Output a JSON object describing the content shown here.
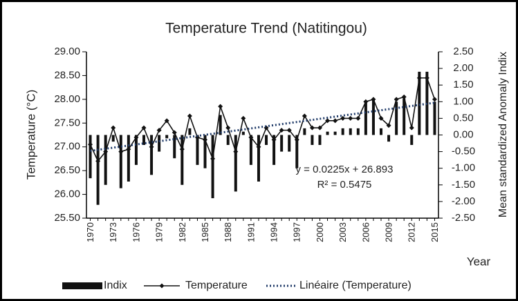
{
  "chart_data": {
    "type": "combo",
    "title": "Temperature Trend (Natitingou)",
    "y_label": "Temperature (°C)",
    "y2_label": "Mean standardized  Anomaly Indix",
    "x_label": "Year",
    "categories": [
      "1970",
      null,
      null,
      "1973",
      null,
      null,
      "1976",
      null,
      null,
      "1979",
      null,
      null,
      "1982",
      null,
      null,
      "1985",
      null,
      null,
      "1988",
      null,
      null,
      "1991",
      null,
      null,
      "1994",
      null,
      null,
      "1997",
      null,
      null,
      "2000",
      null,
      null,
      "2003",
      null,
      null,
      "2006",
      null,
      null,
      "2009",
      null,
      null,
      "2012",
      null,
      null,
      "2015"
    ],
    "series": [
      {
        "name": "Indix",
        "type": "bar",
        "axis": "y2",
        "color": "#111111",
        "values": [
          -1.3,
          -2.1,
          -1.5,
          -0.2,
          -1.6,
          -1.4,
          -0.9,
          -0.3,
          -1.2,
          -0.5,
          -0.1,
          -0.7,
          -1.5,
          0.2,
          -0.9,
          -1.0,
          -1.9,
          0.6,
          -0.3,
          -1.7,
          0.1,
          -0.9,
          -1.4,
          -0.3,
          -0.9,
          -0.5,
          -0.5,
          -1.0,
          0.2,
          -0.3,
          -0.3,
          0.1,
          0.1,
          0.2,
          0.2,
          0.2,
          1.0,
          1.1,
          0.2,
          -0.2,
          1.0,
          1.1,
          -0.3,
          1.9,
          1.9,
          1.0
        ]
      },
      {
        "name": "Temperature",
        "type": "line",
        "axis": "y",
        "color": "#111111",
        "values": [
          27.05,
          26.7,
          26.9,
          27.4,
          26.9,
          26.95,
          27.2,
          27.4,
          27.0,
          27.35,
          27.55,
          27.3,
          26.95,
          27.65,
          27.2,
          27.15,
          26.75,
          27.85,
          27.4,
          26.9,
          27.6,
          27.2,
          27.0,
          27.4,
          27.15,
          27.35,
          27.35,
          27.15,
          27.65,
          27.4,
          27.4,
          27.55,
          27.55,
          27.6,
          27.6,
          27.6,
          27.95,
          28.0,
          27.6,
          27.45,
          28.0,
          28.05,
          27.4,
          28.45,
          28.45,
          28.0
        ]
      },
      {
        "name": "Linéaire (Temperature)",
        "type": "trend",
        "axis": "y",
        "color": "#1f3a68",
        "values": [
          26.9155,
          26.938,
          26.9605,
          26.983,
          27.0055,
          27.028,
          27.0505,
          27.073,
          27.0955,
          27.118,
          27.1405,
          27.163,
          27.1855,
          27.208,
          27.2305,
          27.253,
          27.2755,
          27.298,
          27.3205,
          27.343,
          27.3655,
          27.388,
          27.4105,
          27.433,
          27.4555,
          27.478,
          27.5005,
          27.523,
          27.5455,
          27.568,
          27.5905,
          27.613,
          27.6355,
          27.658,
          27.6805,
          27.703,
          27.7255,
          27.748,
          27.7705,
          27.793,
          27.8155,
          27.838,
          27.8605,
          27.883,
          27.9055,
          27.928
        ]
      }
    ],
    "annotations": [
      "y = 0.0225x + 26.893",
      "R² = 0.5475"
    ],
    "ylim": [
      25.5,
      29.0
    ],
    "yticks": [
      {
        "value": 25.5,
        "label": "25.50"
      },
      {
        "value": 26.0,
        "label": "26.00"
      },
      {
        "value": 26.5,
        "label": "26.50"
      },
      {
        "value": 27.0,
        "label": "27.00"
      },
      {
        "value": 27.5,
        "label": "27.50"
      },
      {
        "value": 28.0,
        "label": "28.00"
      },
      {
        "value": 28.5,
        "label": "28.50"
      },
      {
        "value": 29.0,
        "label": "29.00"
      }
    ],
    "y2lim": [
      -2.5,
      2.5
    ],
    "y2ticks": [
      {
        "value": -2.5,
        "label": "-2.50"
      },
      {
        "value": -2.0,
        "label": "-2.00"
      },
      {
        "value": -1.5,
        "label": "-1.50"
      },
      {
        "value": -1.0,
        "label": "-1.00"
      },
      {
        "value": -0.5,
        "label": "-0.50"
      },
      {
        "value": 0,
        "label": "0.00"
      },
      {
        "value": 0.5,
        "label": "0.50"
      },
      {
        "value": 1.0,
        "label": "1.00"
      },
      {
        "value": 1.5,
        "label": "1.50"
      },
      {
        "value": 2.0,
        "label": "2.00"
      },
      {
        "value": 2.5,
        "label": "2.50"
      }
    ],
    "grid": false,
    "legend": "bottom"
  }
}
